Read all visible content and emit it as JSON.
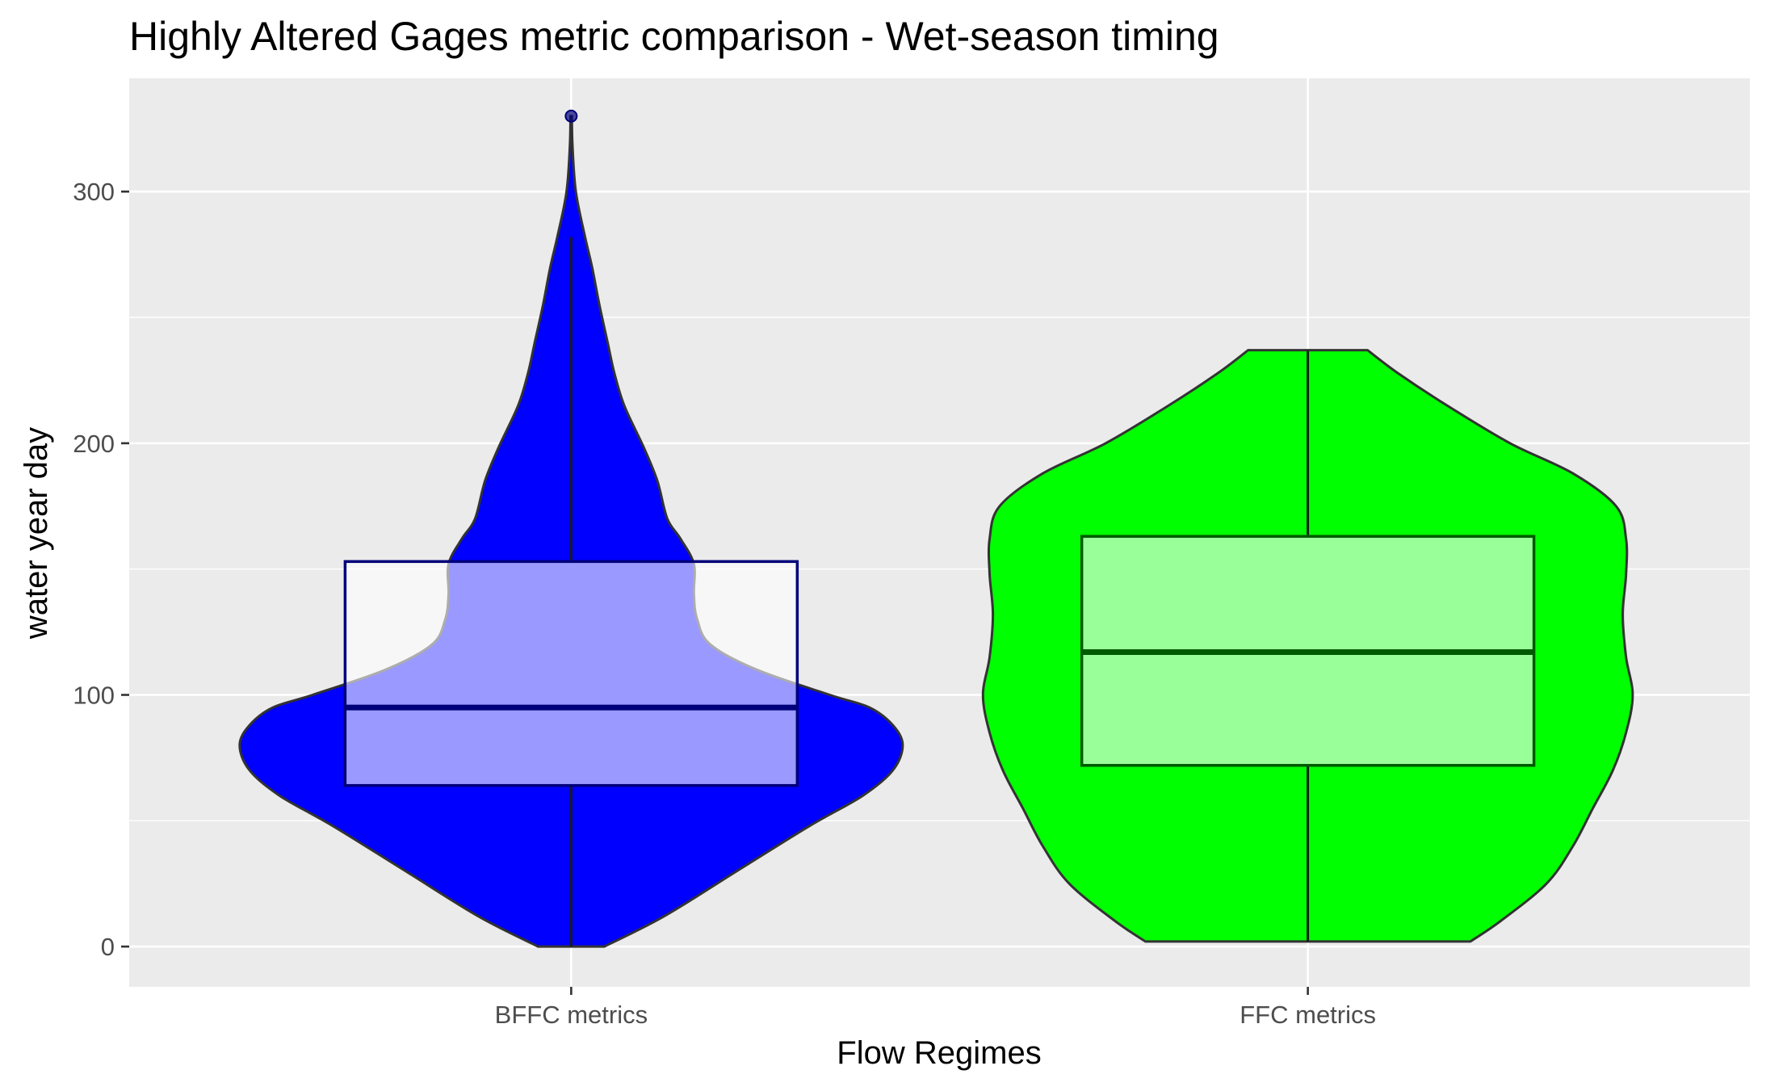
{
  "chart_data": {
    "type": "violin",
    "title": "Highly Altered Gages metric comparison - Wet-season timing",
    "xlabel": "Flow Regimes",
    "ylabel": "water year day",
    "ylim": [
      -16,
      345
    ],
    "yticks": [
      0,
      100,
      200,
      300
    ],
    "grid": true,
    "legend": "none",
    "categories": [
      "BFFC metrics",
      "FFC metrics"
    ],
    "series": [
      {
        "category": "BFFC metrics",
        "fill": "#0000ff",
        "box_fill": "#ffffff",
        "box_stroke": "#00007a",
        "box": {
          "whisker_low": 0,
          "q1": 64,
          "median": 95,
          "q3": 153,
          "whisker_high": 282
        },
        "outliers": [
          330
        ],
        "density_profile": [
          [
            0,
            0.1
          ],
          [
            12,
            0.28
          ],
          [
            30,
            0.5
          ],
          [
            48,
            0.72
          ],
          [
            60,
            0.88
          ],
          [
            70,
            0.97
          ],
          [
            80,
            1.0
          ],
          [
            88,
            0.97
          ],
          [
            95,
            0.9
          ],
          [
            100,
            0.78
          ],
          [
            110,
            0.56
          ],
          [
            120,
            0.42
          ],
          [
            130,
            0.38
          ],
          [
            140,
            0.37
          ],
          [
            152,
            0.37
          ],
          [
            162,
            0.33
          ],
          [
            170,
            0.29
          ],
          [
            185,
            0.26
          ],
          [
            198,
            0.22
          ],
          [
            215,
            0.16
          ],
          [
            228,
            0.13
          ],
          [
            240,
            0.11
          ],
          [
            255,
            0.085
          ],
          [
            270,
            0.063
          ],
          [
            283,
            0.04
          ],
          [
            300,
            0.014
          ],
          [
            318,
            0.004
          ],
          [
            330,
            0.002
          ]
        ]
      },
      {
        "category": "FFC metrics",
        "fill": "#00ff00",
        "box_fill": "#ffffff",
        "box_stroke": "#005a00",
        "box": {
          "whisker_low": 2,
          "q1": 72,
          "median": 117,
          "q3": 163,
          "whisker_high": 237
        },
        "outliers": [],
        "density_profile": [
          [
            2,
            0.49
          ],
          [
            10,
            0.58
          ],
          [
            25,
            0.72
          ],
          [
            40,
            0.8
          ],
          [
            55,
            0.86
          ],
          [
            70,
            0.92
          ],
          [
            85,
            0.96
          ],
          [
            100,
            0.98
          ],
          [
            115,
            0.96
          ],
          [
            132,
            0.95
          ],
          [
            148,
            0.96
          ],
          [
            162,
            0.96
          ],
          [
            175,
            0.93
          ],
          [
            188,
            0.8
          ],
          [
            200,
            0.61
          ],
          [
            215,
            0.42
          ],
          [
            228,
            0.27
          ],
          [
            237,
            0.18
          ]
        ]
      }
    ]
  }
}
